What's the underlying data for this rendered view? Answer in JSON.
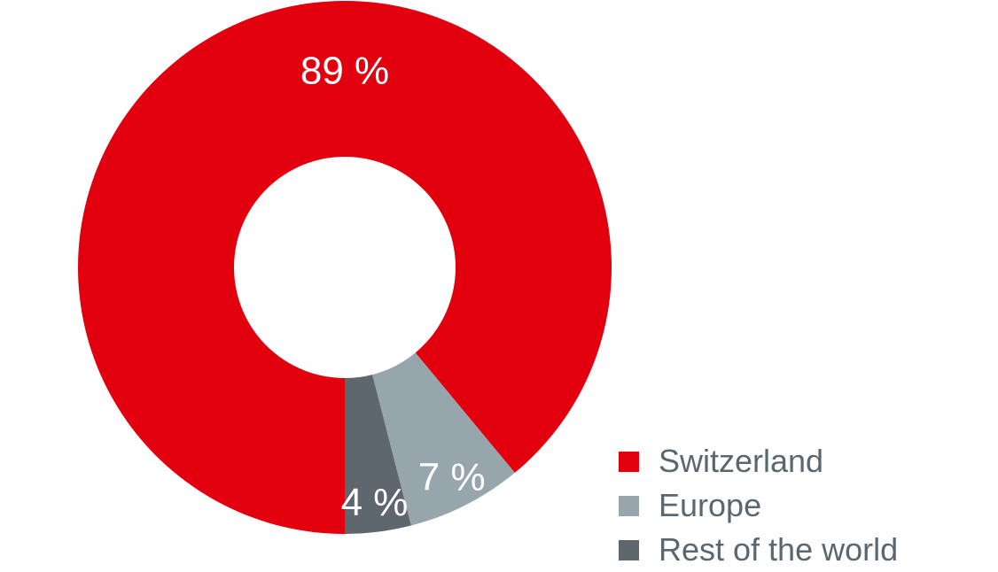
{
  "chart_data": {
    "type": "pie",
    "title": "",
    "categories": [
      "Switzerland",
      "Europe",
      "Rest of the world"
    ],
    "values": [
      89,
      7,
      4
    ],
    "labels": [
      "89 %",
      "7 %",
      "4 %"
    ],
    "colors": [
      "#e2000f",
      "#97a6ad",
      "#5e676e"
    ],
    "legend": "bottom-right",
    "donut": true
  }
}
